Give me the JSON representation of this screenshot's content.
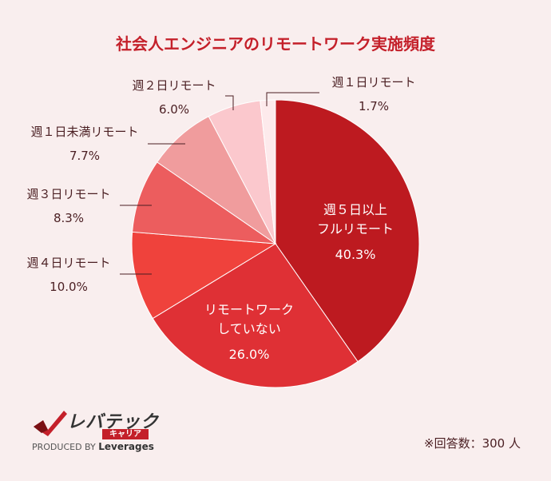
{
  "chart_data": {
    "type": "pie",
    "title": "社会人エンジニアのリモートワーク実施頻度",
    "slices": [
      {
        "label_lines": [
          "週５日以上",
          "フルリモート"
        ],
        "value": 40.3,
        "value_text": "40.3%",
        "color": "#bd1a20"
      },
      {
        "label_lines": [
          "リモートワーク",
          "していない"
        ],
        "value": 26.0,
        "value_text": "26.0%",
        "color": "#df3035"
      },
      {
        "label_lines": [
          "週４日リモート"
        ],
        "value": 10.0,
        "value_text": "10.0%",
        "color": "#ef423c"
      },
      {
        "label_lines": [
          "週３日リモート"
        ],
        "value": 8.3,
        "value_text": "8.3%",
        "color": "#ec5d5e"
      },
      {
        "label_lines": [
          "週１日未満リモート"
        ],
        "value": 7.7,
        "value_text": "7.7%",
        "color": "#f09c9d"
      },
      {
        "label_lines": [
          "週２日リモート"
        ],
        "value": 6.0,
        "value_text": "6.0%",
        "color": "#fbc8cd"
      },
      {
        "label_lines": [
          "週１日リモート"
        ],
        "value": 1.7,
        "value_text": "1.7%",
        "color": "#fdeaec"
      }
    ]
  },
  "logo": {
    "brand": "レバテック",
    "sub": "キャリア",
    "produced_by": "PRODUCED BY",
    "company": "Leverages"
  },
  "note": "※回答数：300 人"
}
